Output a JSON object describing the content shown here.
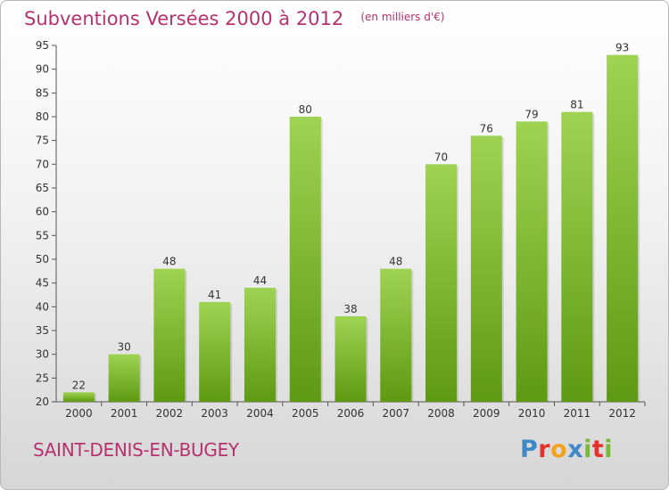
{
  "title": "Subventions Versées 2000 à 2012",
  "unit": "(en milliers d'€)",
  "commune": "SAINT-DENIS-EN-BUGEY",
  "logo": {
    "text": "Proxiti",
    "letters": [
      {
        "char": "P",
        "color": "#3d88c8"
      },
      {
        "char": "r",
        "color": "#e3312d"
      },
      {
        "char": "o",
        "color": "#f4a21e"
      },
      {
        "char": "x",
        "color": "#3d88c8"
      },
      {
        "char": "i",
        "color": "#7ab837"
      },
      {
        "char": "t",
        "color": "#e3312d"
      },
      {
        "char": "i",
        "color": "#7ab837"
      }
    ]
  },
  "colors": {
    "bar_light": "#9fd352",
    "bar_dark": "#5e9a11",
    "accent": "#b5326f"
  },
  "chart_data": {
    "type": "bar",
    "title": "Subventions Versées 2000 à 2012",
    "xlabel": "",
    "ylabel": "",
    "ylim": [
      20,
      95
    ],
    "yticks": [
      20,
      25,
      30,
      35,
      40,
      45,
      50,
      55,
      60,
      65,
      70,
      75,
      80,
      85,
      90,
      95
    ],
    "grid": false,
    "categories": [
      "2000",
      "2001",
      "2002",
      "2003",
      "2004",
      "2005",
      "2006",
      "2007",
      "2008",
      "2009",
      "2010",
      "2011",
      "2012"
    ],
    "values": [
      22,
      30,
      48,
      41,
      44,
      80,
      38,
      48,
      70,
      76,
      79,
      81,
      93
    ]
  }
}
